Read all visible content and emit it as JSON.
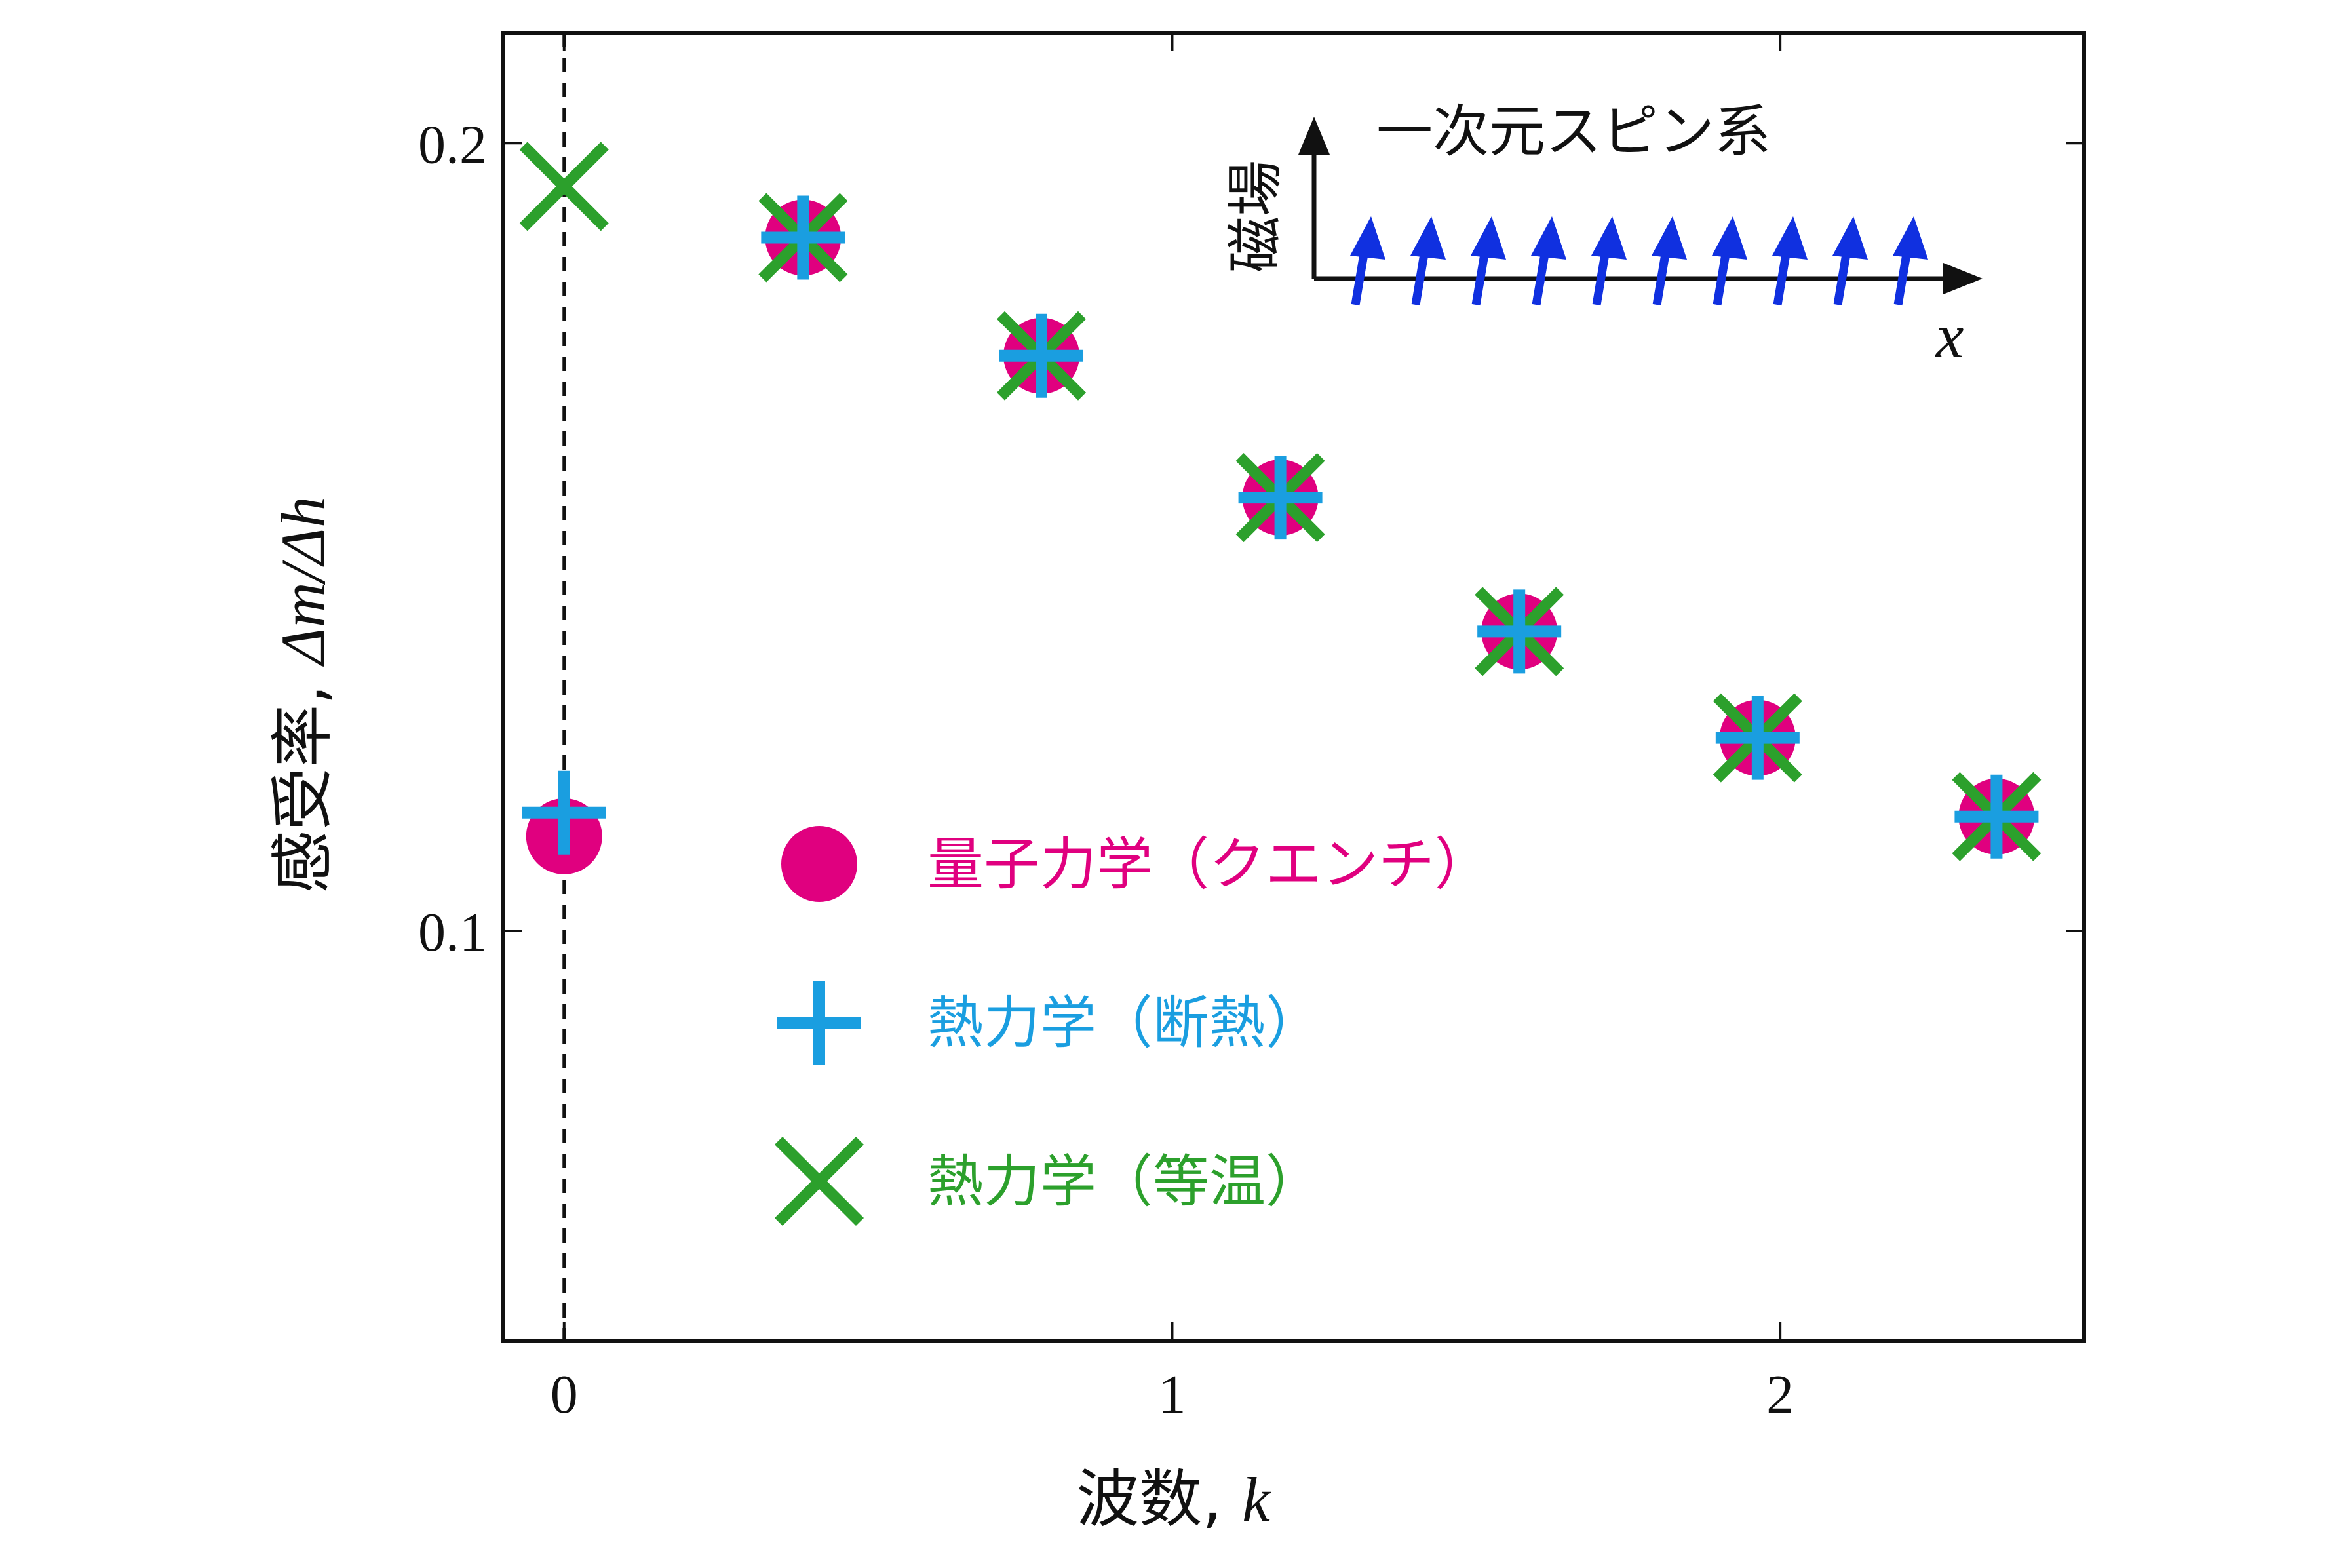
{
  "chart_data": {
    "type": "scatter",
    "xlabel": "波数, k",
    "xlabel_prefix": "波数, ",
    "xlabel_var": "k",
    "ylabel": "感受率, Δm/Δh",
    "ylabel_prefix": "感受率, ",
    "ylabel_var": "Δm/Δh",
    "xlim": [
      -0.1,
      2.5
    ],
    "ylim": [
      0.048,
      0.214
    ],
    "xticks": [
      0,
      1,
      2
    ],
    "xtick_labels": [
      "0",
      "1",
      "2"
    ],
    "yticks": [
      0.1,
      0.2
    ],
    "ytick_labels": [
      "0.1",
      "0.2"
    ],
    "vline_x": 0,
    "legend_position": "lower-center",
    "series": [
      {
        "name": "量子力学（クエンチ）",
        "marker": "circle",
        "color": "#e0007f",
        "x": [
          0,
          0.393,
          0.785,
          1.178,
          1.571,
          1.963,
          2.356
        ],
        "y": [
          0.112,
          0.188,
          0.173,
          0.155,
          0.138,
          0.1245,
          0.1145
        ]
      },
      {
        "name": "熱力学（断熱）",
        "marker": "plus",
        "color": "#1a9ee0",
        "x": [
          0,
          0.393,
          0.785,
          1.178,
          1.571,
          1.963,
          2.356
        ],
        "y": [
          0.115,
          0.188,
          0.173,
          0.155,
          0.138,
          0.1245,
          0.1145
        ]
      },
      {
        "name": "熱力学（等温）",
        "marker": "x",
        "color": "#2ca02c",
        "x": [
          0,
          0.393,
          0.785,
          1.178,
          1.571,
          1.963,
          2.356
        ],
        "y": [
          0.1945,
          0.188,
          0.173,
          0.155,
          0.138,
          0.1245,
          0.1145
        ]
      }
    ],
    "inset": {
      "title": "一次元スピン系",
      "field_label": "磁場",
      "axis_label": "x",
      "spin_count": 10,
      "spin_color": "#1030e0"
    }
  }
}
